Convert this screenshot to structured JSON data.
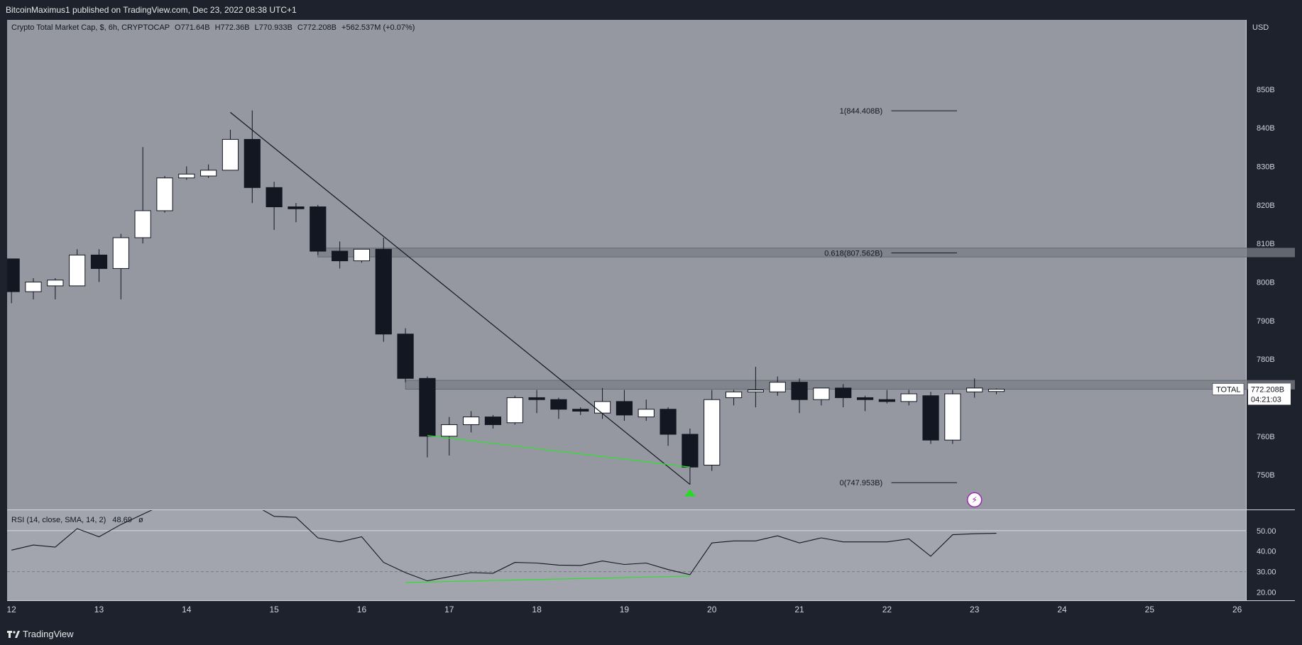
{
  "header": {
    "publisher_line": "BitcoinMaximus1 published on TradingView.com, Dec 23, 2022 08:38 UTC+1"
  },
  "footer": {
    "brand": "TradingView",
    "logo_icon": "tradingview-logo-icon"
  },
  "colors": {
    "page_bg": "#1e222d",
    "chart_bg": "#9598a1",
    "rsi_bg": "#a2a5ad",
    "bull_candle": "#ffffff",
    "bear_candle": "#131722",
    "divergence_line": "#2ee02e",
    "zone_fill": "#7a7d85",
    "arrow": "#22dd22",
    "lightning_badge": "#9c27b0"
  },
  "chart_data": {
    "type": "candlestick",
    "legend": {
      "symbol": "Crypto Total Market Cap, $, 6h, CRYPTOCAP",
      "o_label": "O",
      "o_value": "771.64B",
      "h_label": "H",
      "h_value": "772.36B",
      "l_label": "L",
      "l_value": "770.933B",
      "c_label": "C",
      "c_value": "772.208B",
      "change": "+562.537M (+0.07%)"
    },
    "y_axis": {
      "unit": "USD",
      "range": [
        741,
        868
      ],
      "ticks": [
        {
          "value": 850,
          "label": "850B"
        },
        {
          "value": 840,
          "label": "840B"
        },
        {
          "value": 830,
          "label": "830B"
        },
        {
          "value": 820,
          "label": "820B"
        },
        {
          "value": 810,
          "label": "810B"
        },
        {
          "value": 800,
          "label": "800B"
        },
        {
          "value": 790,
          "label": "790B"
        },
        {
          "value": 780,
          "label": "780B"
        },
        {
          "value": 760,
          "label": "760B"
        },
        {
          "value": 750,
          "label": "750B"
        }
      ]
    },
    "x_axis": {
      "range": [
        11.95,
        26.1
      ],
      "ticks": [
        {
          "value": 12,
          "label": "12"
        },
        {
          "value": 13,
          "label": "13"
        },
        {
          "value": 14,
          "label": "14"
        },
        {
          "value": 15,
          "label": "15"
        },
        {
          "value": 16,
          "label": "16"
        },
        {
          "value": 17,
          "label": "17"
        },
        {
          "value": 18,
          "label": "18"
        },
        {
          "value": 19,
          "label": "19"
        },
        {
          "value": 20,
          "label": "20"
        },
        {
          "value": 21,
          "label": "21"
        },
        {
          "value": 22,
          "label": "22"
        },
        {
          "value": 23,
          "label": "23"
        },
        {
          "value": 24,
          "label": "24"
        },
        {
          "value": 25,
          "label": "25"
        },
        {
          "value": 26,
          "label": "26"
        }
      ]
    },
    "candles": [
      {
        "t": 12.0,
        "o": 806,
        "h": 806,
        "l": 794.5,
        "c": 797.5
      },
      {
        "t": 12.25,
        "o": 797.5,
        "h": 801,
        "l": 795.5,
        "c": 800
      },
      {
        "t": 12.5,
        "o": 799,
        "h": 801,
        "l": 795.5,
        "c": 800.5
      },
      {
        "t": 12.75,
        "o": 799,
        "h": 808.5,
        "l": 799,
        "c": 807
      },
      {
        "t": 13.0,
        "o": 807,
        "h": 808.5,
        "l": 800,
        "c": 803.5
      },
      {
        "t": 13.25,
        "o": 803.5,
        "h": 812.5,
        "l": 795.5,
        "c": 811.5
      },
      {
        "t": 13.5,
        "o": 811.5,
        "h": 835,
        "l": 810,
        "c": 818.5
      },
      {
        "t": 13.75,
        "o": 818.5,
        "h": 827.5,
        "l": 818,
        "c": 827
      },
      {
        "t": 14.0,
        "o": 827,
        "h": 830,
        "l": 826.5,
        "c": 828
      },
      {
        "t": 14.25,
        "o": 827.5,
        "h": 830.5,
        "l": 827,
        "c": 829
      },
      {
        "t": 14.5,
        "o": 829,
        "h": 839.5,
        "l": 829,
        "c": 837
      },
      {
        "t": 14.75,
        "o": 837,
        "h": 844.5,
        "l": 820.5,
        "c": 824.5
      },
      {
        "t": 15.0,
        "o": 824.5,
        "h": 826,
        "l": 813.5,
        "c": 819.5
      },
      {
        "t": 15.25,
        "o": 819.5,
        "h": 820.5,
        "l": 815.5,
        "c": 819
      },
      {
        "t": 15.5,
        "o": 819.5,
        "h": 820,
        "l": 807,
        "c": 808
      },
      {
        "t": 15.75,
        "o": 808,
        "h": 810.5,
        "l": 803.5,
        "c": 805.5
      },
      {
        "t": 16.0,
        "o": 805.5,
        "h": 808.5,
        "l": 805,
        "c": 808.5
      },
      {
        "t": 16.25,
        "o": 808.5,
        "h": 811.5,
        "l": 784.5,
        "c": 786.5
      },
      {
        "t": 16.5,
        "o": 786.5,
        "h": 788,
        "l": 774,
        "c": 775
      },
      {
        "t": 16.75,
        "o": 775,
        "h": 775.5,
        "l": 754.5,
        "c": 760
      },
      {
        "t": 17.0,
        "o": 760,
        "h": 765,
        "l": 755,
        "c": 763
      },
      {
        "t": 17.25,
        "o": 763,
        "h": 766.5,
        "l": 761,
        "c": 765
      },
      {
        "t": 17.5,
        "o": 765,
        "h": 765.5,
        "l": 762,
        "c": 763
      },
      {
        "t": 17.75,
        "o": 763.5,
        "h": 770.5,
        "l": 763,
        "c": 770
      },
      {
        "t": 18.0,
        "o": 770,
        "h": 772,
        "l": 766,
        "c": 769.5
      },
      {
        "t": 18.25,
        "o": 769.5,
        "h": 770,
        "l": 764.5,
        "c": 767
      },
      {
        "t": 18.5,
        "o": 767,
        "h": 767.5,
        "l": 765.5,
        "c": 766.5
      },
      {
        "t": 18.75,
        "o": 766,
        "h": 772.5,
        "l": 764.5,
        "c": 769
      },
      {
        "t": 19.0,
        "o": 769,
        "h": 772,
        "l": 764,
        "c": 765.5
      },
      {
        "t": 19.25,
        "o": 765,
        "h": 769.5,
        "l": 764,
        "c": 767
      },
      {
        "t": 19.5,
        "o": 767,
        "h": 767.5,
        "l": 757.5,
        "c": 760.5
      },
      {
        "t": 19.75,
        "o": 760.5,
        "h": 762,
        "l": 747.5,
        "c": 752
      },
      {
        "t": 20.0,
        "o": 752.5,
        "h": 772,
        "l": 751,
        "c": 769.5
      },
      {
        "t": 20.25,
        "o": 770,
        "h": 772,
        "l": 768,
        "c": 771.5
      },
      {
        "t": 20.5,
        "o": 771.5,
        "h": 778,
        "l": 767.5,
        "c": 772
      },
      {
        "t": 20.75,
        "o": 771.5,
        "h": 775.5,
        "l": 770.5,
        "c": 774
      },
      {
        "t": 21.0,
        "o": 774,
        "h": 775,
        "l": 766,
        "c": 769.5
      },
      {
        "t": 21.25,
        "o": 769.5,
        "h": 772.5,
        "l": 768,
        "c": 772.5
      },
      {
        "t": 21.5,
        "o": 772.5,
        "h": 773.5,
        "l": 767.5,
        "c": 770
      },
      {
        "t": 21.75,
        "o": 770,
        "h": 770.5,
        "l": 766.5,
        "c": 769.5
      },
      {
        "t": 22.0,
        "o": 769.5,
        "h": 772,
        "l": 768.5,
        "c": 769
      },
      {
        "t": 22.25,
        "o": 769,
        "h": 772,
        "l": 768,
        "c": 771
      },
      {
        "t": 22.5,
        "o": 770.5,
        "h": 771.5,
        "l": 758,
        "c": 759
      },
      {
        "t": 22.75,
        "o": 759,
        "h": 772,
        "l": 758,
        "c": 771
      },
      {
        "t": 23.0,
        "o": 771.5,
        "h": 775,
        "l": 770,
        "c": 772.5
      },
      {
        "t": 23.25,
        "o": 771.6,
        "h": 772.4,
        "l": 770.9,
        "c": 772.2
      }
    ],
    "resistance_zones": [
      {
        "t_start": 15.5,
        "t_end": 27.1,
        "y_low": 806.5,
        "y_high": 808.8
      },
      {
        "t_start": 16.5,
        "t_end": 26.85,
        "y_low": 772.2,
        "y_high": 774.5
      }
    ],
    "fib_levels": [
      {
        "label": "1(844.408B)",
        "value": 844.408
      },
      {
        "label": "0.618(807.562B)",
        "value": 807.562
      },
      {
        "label": "0(747.953B)",
        "value": 747.953
      }
    ],
    "fib_label_t": 21.95,
    "fib_line_span": [
      22.05,
      22.8
    ],
    "trendline": {
      "t1": 14.5,
      "y1": 844,
      "t2": 19.75,
      "y2": 747.5
    },
    "divergence_price": {
      "t1": 16.75,
      "y1": 760.2,
      "t2": 19.75,
      "y2": 752
    },
    "signal_arrow": {
      "t": 19.75,
      "y": 745.5
    },
    "lightning_badge_pos": {
      "t": 23.0,
      "y": 743.5
    },
    "last_price": {
      "symbol_label": "TOTAL",
      "value": 772.208,
      "value_label": "772.208B",
      "countdown": "04:21:03"
    },
    "rsi": {
      "legend": "RSI (14, close, SMA, 14, 2)",
      "value_label": "48.69",
      "extra_glyph": "ø",
      "range": [
        16,
        60
      ],
      "ticks": [
        {
          "value": 50,
          "label": "50.00"
        },
        {
          "value": 40,
          "label": "40.00"
        },
        {
          "value": 30,
          "label": "30.00"
        },
        {
          "value": 20,
          "label": "20.00"
        }
      ],
      "upper_band": 50,
      "lower_band": 30,
      "points": [
        [
          12.0,
          40.5
        ],
        [
          12.25,
          43
        ],
        [
          12.5,
          42
        ],
        [
          12.75,
          51
        ],
        [
          13.0,
          47
        ],
        [
          13.25,
          53
        ],
        [
          13.5,
          58
        ],
        [
          13.75,
          63
        ],
        [
          14.0,
          68
        ],
        [
          14.25,
          65
        ],
        [
          14.5,
          68
        ],
        [
          14.75,
          63
        ],
        [
          15.0,
          57
        ],
        [
          15.25,
          56.5
        ],
        [
          15.5,
          46.5
        ],
        [
          15.75,
          44.5
        ],
        [
          16.0,
          47
        ],
        [
          16.25,
          34.5
        ],
        [
          16.5,
          29.5
        ],
        [
          16.75,
          25.5
        ],
        [
          17.0,
          27.5
        ],
        [
          17.25,
          29.5
        ],
        [
          17.5,
          29.2
        ],
        [
          17.75,
          34.5
        ],
        [
          18.0,
          34.2
        ],
        [
          18.25,
          33.2
        ],
        [
          18.5,
          33
        ],
        [
          18.75,
          35.2
        ],
        [
          19.0,
          33.5
        ],
        [
          19.25,
          34.2
        ],
        [
          19.5,
          31
        ],
        [
          19.75,
          28.5
        ],
        [
          20.0,
          44
        ],
        [
          20.25,
          45
        ],
        [
          20.5,
          45
        ],
        [
          20.75,
          47.5
        ],
        [
          21.0,
          44
        ],
        [
          21.25,
          46.5
        ],
        [
          21.5,
          44.5
        ],
        [
          21.75,
          44.5
        ],
        [
          22.0,
          44.5
        ],
        [
          22.25,
          46
        ],
        [
          22.5,
          37.5
        ],
        [
          22.75,
          48
        ],
        [
          23.0,
          48.5
        ],
        [
          23.25,
          48.7
        ]
      ],
      "divergence": {
        "t1": 16.5,
        "y1": 24.7,
        "t2": 19.75,
        "y2": 27.8
      }
    }
  }
}
